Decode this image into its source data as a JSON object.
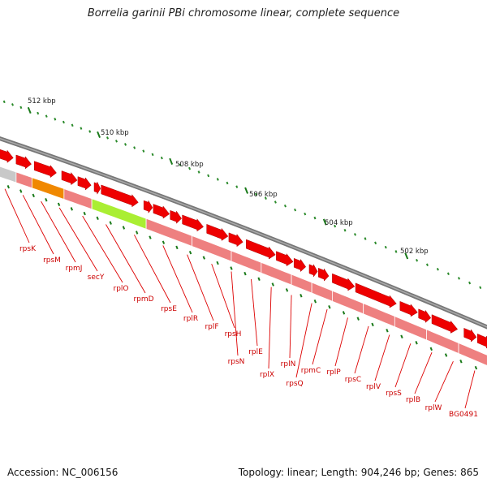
{
  "title": "Borrelia garinii PBi chromosome linear, complete sequence",
  "footer": {
    "accession": "Accession: NC_006156",
    "summary": "Topology: linear; Length: 904,246 bp; Genes: 865"
  },
  "ruler": {
    "labels": [
      "512 kbp",
      "510 kbp",
      "508 kbp",
      "506 kbp",
      "504 kbp",
      "502 kbp"
    ]
  },
  "colors": {
    "backbone": "#777777",
    "forward_gene": "#ee0000",
    "reverse_gene": "#ee8080",
    "tick_major": "#1a7a1a",
    "tick_minor": "#2a8a2a",
    "label_line": "#dd0000",
    "label_text": "#cc0000",
    "highlight_orange": "#f08800",
    "highlight_green": "#aaee33",
    "pseudo_gray": "#c8c8c8"
  },
  "gene_labels": [
    "rpsK",
    "rpsM",
    "rpmJ",
    "secY",
    "rplO",
    "rpmD",
    "rpsE",
    "rplR",
    "rplF",
    "rpsH",
    "rpsN",
    "rplE",
    "rplX",
    "rplN",
    "rpsQ",
    "rpmC",
    "rplP",
    "rpsC",
    "rplV",
    "rpsS",
    "rplB",
    "rplW",
    "BG0491"
  ]
}
